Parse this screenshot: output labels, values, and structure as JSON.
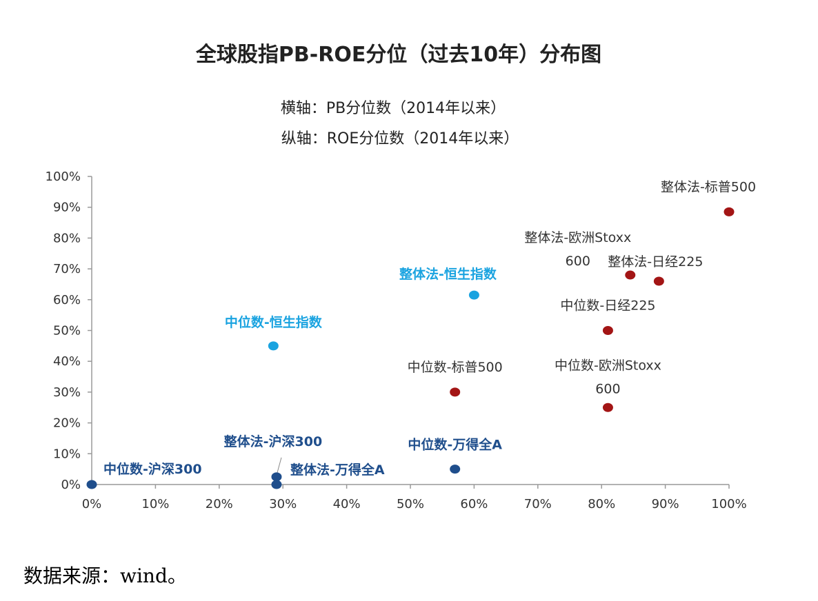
{
  "chart_data": {
    "type": "scatter",
    "title": "全球股指PB-ROE分位（过去10年）分布图",
    "subtitle_x": "横轴：PB分位数（2014年以来）",
    "subtitle_y": "纵轴：ROE分位数（2014年以来）",
    "xlim": [
      0,
      100
    ],
    "ylim": [
      0,
      100
    ],
    "x_ticks": [
      "0%",
      "10%",
      "20%",
      "30%",
      "40%",
      "50%",
      "60%",
      "70%",
      "80%",
      "90%",
      "100%"
    ],
    "y_ticks": [
      "0%",
      "10%",
      "20%",
      "30%",
      "40%",
      "50%",
      "60%",
      "70%",
      "80%",
      "90%",
      "100%"
    ],
    "grid": false,
    "colors": {
      "dark_red": "#A31515",
      "light_blue": "#1AA3E0",
      "dark_blue": "#1F4E8C"
    },
    "points": [
      {
        "label": [
          "整体法-标普500"
        ],
        "x": 100,
        "y": 88.5,
        "color": "dark_red",
        "bold": false
      },
      {
        "label": [
          "整体法-欧洲Stoxx",
          "600"
        ],
        "x": 84.5,
        "y": 68,
        "color": "dark_red",
        "bold": false
      },
      {
        "label": [
          "整体法-日经225"
        ],
        "x": 89,
        "y": 66,
        "color": "dark_red",
        "bold": false
      },
      {
        "label": [
          "中位数-日经225"
        ],
        "x": 81,
        "y": 50,
        "color": "dark_red",
        "bold": false
      },
      {
        "label": [
          "中位数-标普500"
        ],
        "x": 57,
        "y": 30,
        "color": "dark_red",
        "bold": false
      },
      {
        "label": [
          "中位数-欧洲Stoxx",
          "600"
        ],
        "x": 81,
        "y": 25,
        "color": "dark_red",
        "bold": false
      },
      {
        "label": [
          "整体法-恒生指数"
        ],
        "x": 60,
        "y": 61.5,
        "color": "light_blue",
        "bold": true
      },
      {
        "label": [
          "中位数-恒生指数"
        ],
        "x": 28.5,
        "y": 45,
        "color": "light_blue",
        "bold": true
      },
      {
        "label": [
          "中位数-万得全A"
        ],
        "x": 57,
        "y": 5,
        "color": "dark_blue",
        "bold": true
      },
      {
        "label": [
          "整体法-万得全A"
        ],
        "x": 29,
        "y": 0,
        "color": "dark_blue",
        "bold": true
      },
      {
        "label": [
          "整体法-沪深300"
        ],
        "x": 29,
        "y": 2.5,
        "color": "dark_blue",
        "bold": true
      },
      {
        "label": [
          "中位数-沪深300"
        ],
        "x": 0,
        "y": 0,
        "color": "dark_blue",
        "bold": true
      }
    ]
  },
  "source": "数据来源：wind。"
}
